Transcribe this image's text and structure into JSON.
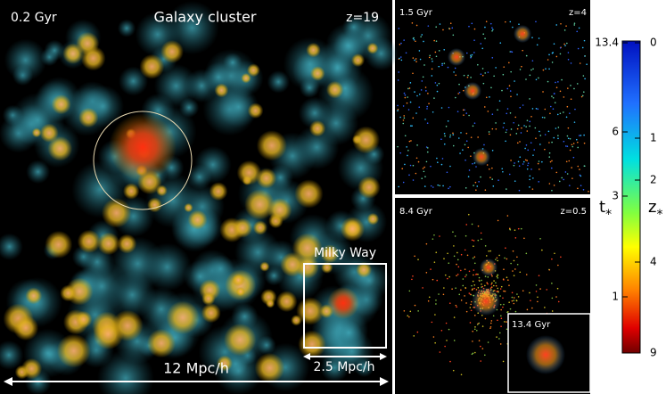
{
  "main_panel": {
    "time": "0.2 Gyr",
    "title": "Galaxy cluster",
    "redshift": "z=19",
    "inset_label": "Milky Way",
    "scale_large": "12 Mpc/h",
    "scale_small": "2.5 Mpc/h"
  },
  "top_panel": {
    "time": "1.5 Gyr",
    "redshift": "z=4"
  },
  "bottom_panel": {
    "time": "8.4 Gyr",
    "redshift": "z=0.5",
    "inset_time": "13.4 Gyr"
  },
  "colorbar": {
    "left_label": "t",
    "left_subscript": "*",
    "right_label": "z",
    "right_subscript": "*",
    "left_ticks": [
      "13.4",
      "6",
      "3",
      "1"
    ],
    "right_ticks": [
      "0",
      "1",
      "2",
      "4",
      "9"
    ]
  }
}
